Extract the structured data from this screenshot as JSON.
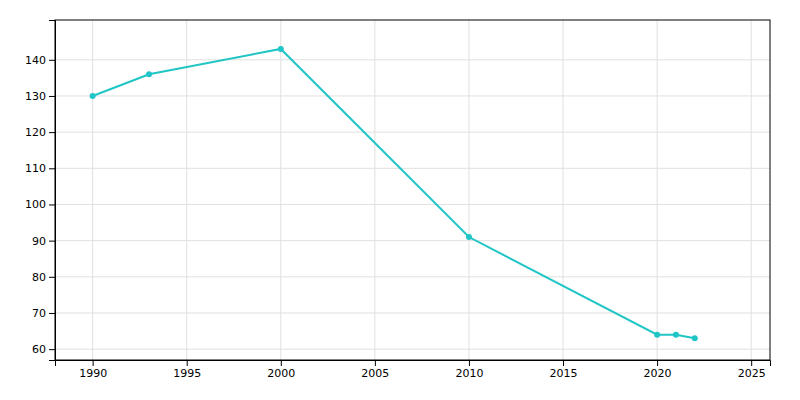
{
  "chart_data": {
    "type": "line",
    "x": [
      1990,
      1993,
      2000,
      2010,
      2020,
      2021,
      2022
    ],
    "values": [
      130,
      136,
      143,
      91,
      64,
      64,
      63
    ],
    "color": "#20C5C5",
    "marker": "circle",
    "xlim": [
      1988,
      2026
    ],
    "ylim": [
      57,
      151
    ],
    "xticks": [
      1990,
      1995,
      2000,
      2005,
      2010,
      2015,
      2020,
      2025
    ],
    "yticks": [
      60,
      70,
      80,
      90,
      100,
      110,
      120,
      130,
      140
    ],
    "grid": true
  }
}
